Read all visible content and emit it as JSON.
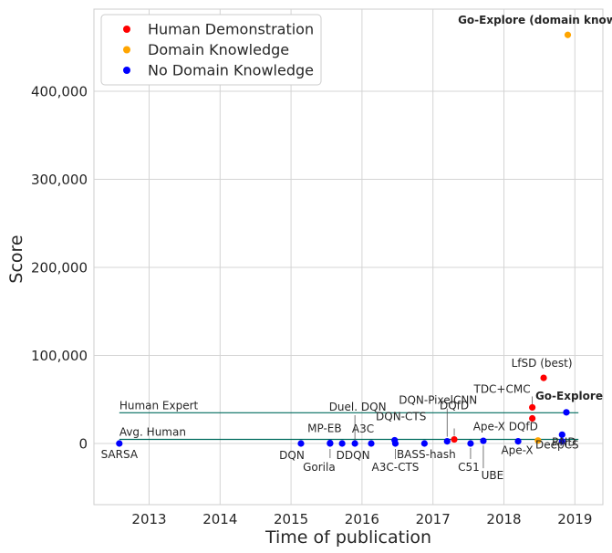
{
  "chart_data": {
    "type": "scatter",
    "title": "",
    "xlabel": "Time of publication",
    "ylabel": "Score",
    "xlim": [
      2012.25,
      2019.4
    ],
    "ylim": [
      -70000,
      495000
    ],
    "grid": true,
    "x_ticks": [
      "2013",
      "2014",
      "2015",
      "2016",
      "2017",
      "2018",
      "2019"
    ],
    "y_ticks": [
      "0",
      "100,000",
      "200,000",
      "300,000",
      "400,000"
    ],
    "legend": {
      "placement": "top-left",
      "entries": [
        {
          "name": "Human Demonstration",
          "color": "#ff0000"
        },
        {
          "name": "Domain Knowledge",
          "color": "#ffa500"
        },
        {
          "name": "No Domain Knowledge",
          "color": "#0000ff"
        }
      ]
    },
    "reference_lines": [
      {
        "label": "Human Expert",
        "y": 34900,
        "x_start": 2012.58,
        "x_end": 2019.05,
        "color": "#006b5e"
      },
      {
        "label": "Avg. Human",
        "y": 4700,
        "x_start": 2012.58,
        "x_end": 2019.05,
        "color": "#006b5e"
      }
    ],
    "series": [
      {
        "name": "Human Demonstration",
        "color": "#ff0000",
        "points": [
          {
            "label": "DQfD",
            "x": 2017.3,
            "y": 4600
          },
          {
            "label": "TDC+CMC",
            "x": 2018.4,
            "y": 41000
          },
          {
            "label": "LfSD (best)",
            "x": 2018.56,
            "y": 74500
          },
          {
            "label": "",
            "x": 2018.4,
            "y": 28500
          }
        ]
      },
      {
        "name": "Domain Knowledge",
        "color": "#ffa500",
        "points": [
          {
            "label": "Go-Explore (domain knowledge)",
            "x": 2018.9,
            "y": 464000
          },
          {
            "label": "DeepCS",
            "x": 2018.48,
            "y": 3400
          }
        ]
      },
      {
        "name": "No Domain Knowledge",
        "color": "#0000ff",
        "points": [
          {
            "label": "SARSA",
            "x": 2012.58,
            "y": 0
          },
          {
            "label": "DQN",
            "x": 2015.14,
            "y": 0
          },
          {
            "label": "Gorila",
            "x": 2015.55,
            "y": 0
          },
          {
            "label": "MP-EB",
            "x": 2015.55,
            "y": 500
          },
          {
            "label": "DDQN",
            "x": 2015.72,
            "y": 0
          },
          {
            "label": "Duel. DQN",
            "x": 2015.9,
            "y": 0
          },
          {
            "label": "A3C",
            "x": 2016.13,
            "y": 0
          },
          {
            "label": "A3C-CTS",
            "x": 2016.47,
            "y": 0
          },
          {
            "label": "DQN-CTS",
            "x": 2016.46,
            "y": 3700
          },
          {
            "label": "BASS-hash",
            "x": 2016.88,
            "y": 0
          },
          {
            "label": "DQN-PixelCNN",
            "x": 2017.2,
            "y": 2500
          },
          {
            "label": "C51",
            "x": 2017.53,
            "y": 0
          },
          {
            "label": "UBE",
            "x": 2017.71,
            "y": 3000
          },
          {
            "label": "Ape-X",
            "x": 2018.2,
            "y": 2500
          },
          {
            "label": "Ape-X DQfD",
            "x": 2018.82,
            "y": 2500
          },
          {
            "label": "RND",
            "x": 2018.82,
            "y": 10000
          },
          {
            "label": "Go-Explore",
            "x": 2018.88,
            "y": 35400
          }
        ]
      }
    ]
  }
}
